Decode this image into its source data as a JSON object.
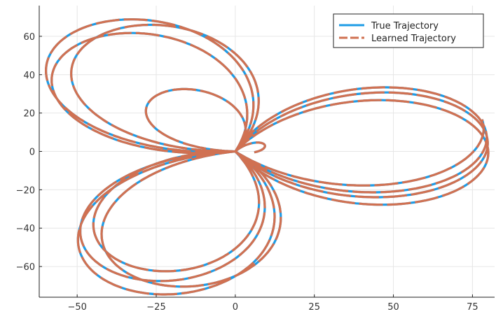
{
  "chart_data": {
    "type": "line",
    "title": "",
    "xlabel": "",
    "ylabel": "",
    "xlim": [
      -62,
      82
    ],
    "ylim": [
      -76,
      76
    ],
    "x_ticks": [
      -50,
      -25,
      0,
      25,
      50,
      75
    ],
    "y_ticks": [
      -60,
      -40,
      -20,
      0,
      20,
      40,
      60
    ],
    "x_tick_labels": [
      "−50",
      "−25",
      "0",
      "25",
      "50",
      "75"
    ],
    "y_tick_labels": [
      "−60",
      "−40",
      "−20",
      "0",
      "20",
      "40",
      "60"
    ],
    "grid": true,
    "legend_position": "top-right",
    "series": [
      {
        "name": "True Trajectory",
        "color": "#1e9ce6",
        "style": "solid"
      },
      {
        "name": "Learned Trajectory",
        "color": "#d07152",
        "style": "dashed"
      }
    ],
    "trajectory": {
      "description_shape": "three-lobed spiral",
      "lobes": [
        {
          "far_point": [
            79,
            -10
          ],
          "span_y": [
            -33,
            26
          ]
        },
        {
          "far_point": [
            -57,
            -50
          ],
          "span_x": [
            -58,
            -10
          ]
        },
        {
          "far_point": [
            -25,
            75
          ],
          "span_y": [
            0,
            75
          ]
        }
      ],
      "loops": 4,
      "end_point": [
        8,
        55
      ]
    }
  }
}
